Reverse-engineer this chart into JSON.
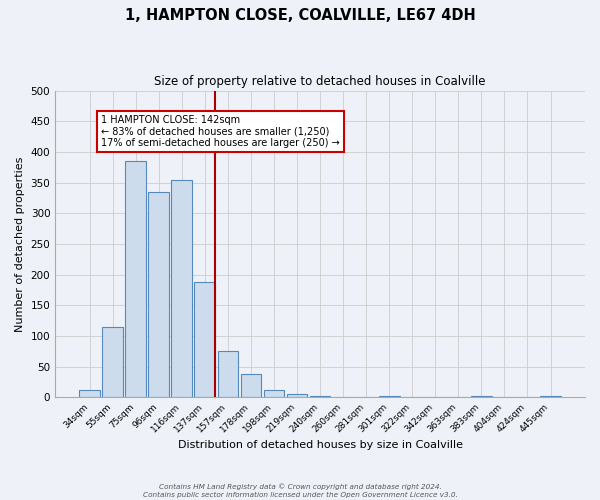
{
  "title": "1, HAMPTON CLOSE, COALVILLE, LE67 4DH",
  "subtitle": "Size of property relative to detached houses in Coalville",
  "xlabel": "Distribution of detached houses by size in Coalville",
  "ylabel": "Number of detached properties",
  "categories": [
    "34sqm",
    "55sqm",
    "75sqm",
    "96sqm",
    "116sqm",
    "137sqm",
    "157sqm",
    "178sqm",
    "198sqm",
    "219sqm",
    "240sqm",
    "260sqm",
    "281sqm",
    "301sqm",
    "322sqm",
    "342sqm",
    "363sqm",
    "383sqm",
    "404sqm",
    "424sqm",
    "445sqm"
  ],
  "bar_heights": [
    12,
    115,
    385,
    335,
    355,
    188,
    75,
    38,
    12,
    5,
    2,
    0,
    0,
    2,
    0,
    0,
    0,
    2,
    0,
    0,
    2
  ],
  "bar_color": "#ccdcec",
  "bar_edge_color": "#5588bb",
  "grid_color": "#cccccc",
  "background_color": "#eef2f8",
  "vline_color": "#aa0000",
  "annotation_title": "1 HAMPTON CLOSE: 142sqm",
  "annotation_line1": "← 83% of detached houses are smaller (1,250)",
  "annotation_line2": "17% of semi-detached houses are larger (250) →",
  "annotation_box_color": "#ffffff",
  "annotation_box_edge": "#cc0000",
  "ylim": [
    0,
    500
  ],
  "yticks": [
    0,
    50,
    100,
    150,
    200,
    250,
    300,
    350,
    400,
    450,
    500
  ],
  "footer_line1": "Contains HM Land Registry data © Crown copyright and database right 2024.",
  "footer_line2": "Contains public sector information licensed under the Open Government Licence v3.0."
}
